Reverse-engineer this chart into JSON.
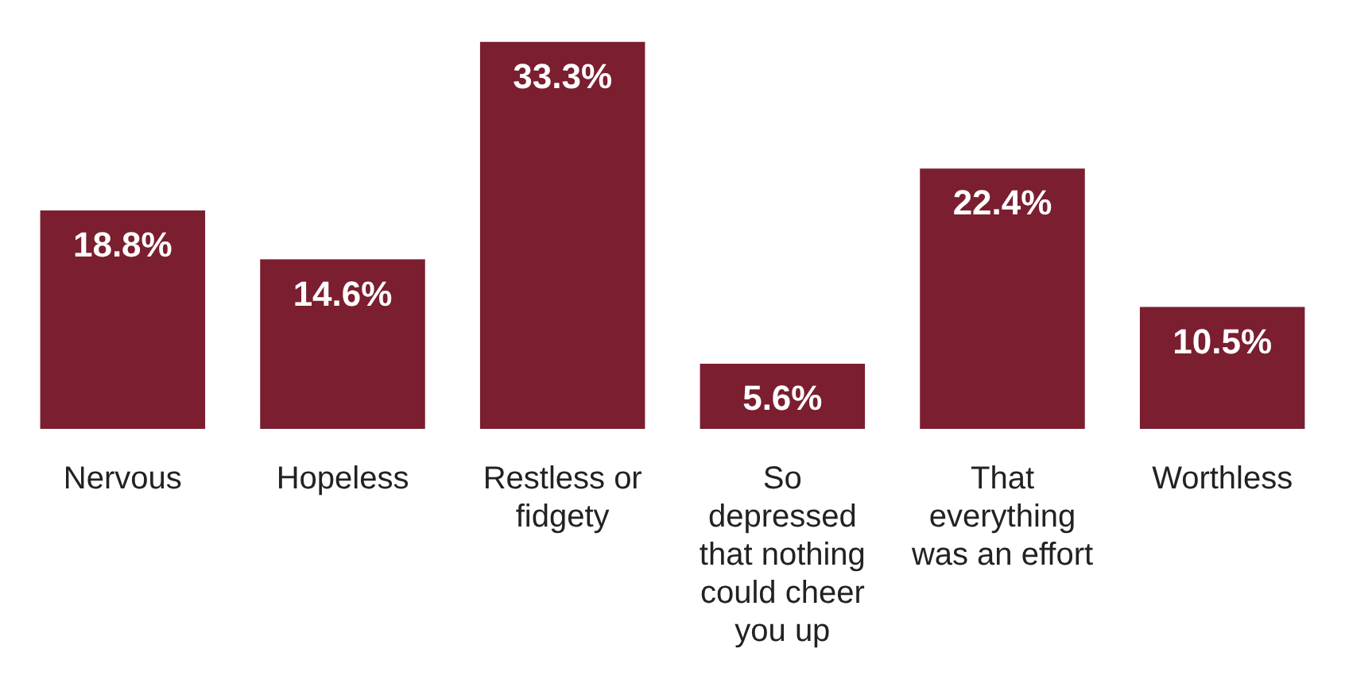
{
  "chart_data": {
    "type": "bar",
    "categories": [
      "Nervous",
      "Hopeless",
      "Restless or fidgety",
      "So depressed that nothing could cheer you up",
      "That everything was an effort",
      "Worthless"
    ],
    "values": [
      18.8,
      14.6,
      33.3,
      5.6,
      22.4,
      10.5
    ],
    "value_labels": [
      "18.8%",
      "14.6%",
      "33.3%",
      "5.6%",
      "22.4%",
      "10.5%"
    ],
    "color": "#7a1e30"
  }
}
